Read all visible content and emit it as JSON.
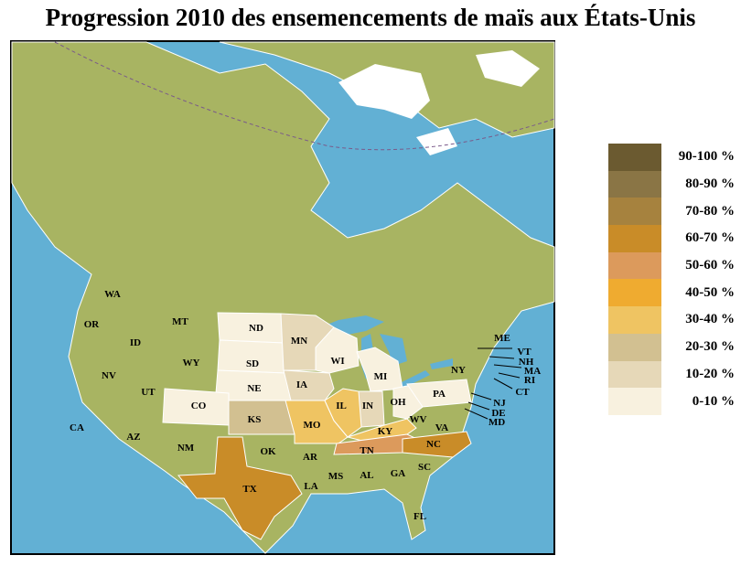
{
  "title": "Progression 2010 des ensemencements de maïs aux États-Unis",
  "colors": {
    "ocean": "#62b0d4",
    "land": "#a8b462",
    "ice": "#ffffff",
    "border": "#ffffff"
  },
  "legend": [
    {
      "label": "90-100 %",
      "color": "#6b5a30"
    },
    {
      "label": "80-90 %",
      "color": "#8a7545"
    },
    {
      "label": "70-80 %",
      "color": "#a6823e"
    },
    {
      "label": "60-70 %",
      "color": "#c98c28"
    },
    {
      "label": "50-60 %",
      "color": "#dc9a5c"
    },
    {
      "label": "40-50 %",
      "color": "#efab30"
    },
    {
      "label": "30-40 %",
      "color": "#efc462"
    },
    {
      "label": "20-30 %",
      "color": "#d2c091"
    },
    {
      "label": "10-20 %",
      "color": "#e6d8b8"
    },
    {
      "label": "0-10 %",
      "color": "#f8f1df"
    }
  ],
  "states": [
    {
      "code": "ND",
      "category": "0-10 %"
    },
    {
      "code": "SD",
      "category": "0-10 %"
    },
    {
      "code": "NE",
      "category": "0-10 %"
    },
    {
      "code": "CO",
      "category": "0-10 %"
    },
    {
      "code": "WI",
      "category": "0-10 %"
    },
    {
      "code": "MI",
      "category": "0-10 %"
    },
    {
      "code": "OH",
      "category": "0-10 %"
    },
    {
      "code": "PA",
      "category": "0-10 %"
    },
    {
      "code": "MN",
      "category": "10-20 %"
    },
    {
      "code": "IA",
      "category": "10-20 %"
    },
    {
      "code": "IN",
      "category": "10-20 %"
    },
    {
      "code": "KS",
      "category": "20-30 %"
    },
    {
      "code": "MO",
      "category": "30-40 %"
    },
    {
      "code": "IL",
      "category": "30-40 %"
    },
    {
      "code": "KY",
      "category": "30-40 %"
    },
    {
      "code": "TN",
      "category": "50-60 %"
    },
    {
      "code": "TX",
      "category": "60-70 %"
    },
    {
      "code": "NC",
      "category": "60-70 %"
    }
  ],
  "labels": [
    "WA",
    "OR",
    "ID",
    "MT",
    "WY",
    "NV",
    "UT",
    "CA",
    "AZ",
    "NM",
    "CO",
    "ND",
    "SD",
    "NE",
    "KS",
    "OK",
    "TX",
    "MN",
    "IA",
    "MO",
    "AR",
    "LA",
    "WI",
    "IL",
    "MS",
    "MI",
    "IN",
    "KY",
    "TN",
    "AL",
    "GA",
    "FL",
    "SC",
    "NC",
    "OH",
    "WV",
    "VA",
    "PA",
    "NY",
    "ME",
    "VT",
    "NH",
    "MA",
    "RI",
    "CT",
    "NJ",
    "DE",
    "MD"
  ]
}
